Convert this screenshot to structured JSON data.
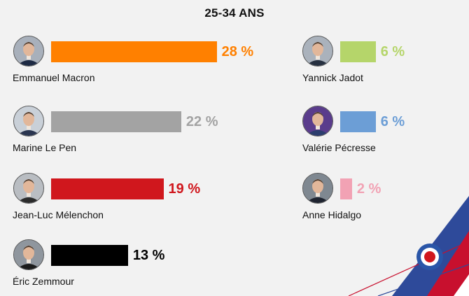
{
  "chart_data": {
    "type": "bar",
    "title": "25-34 ANS",
    "unit": "%",
    "series": [
      {
        "name": "Emmanuel Macron",
        "value": 28,
        "label": "28 %",
        "color": "#ff8000",
        "avatar_bg": "#a8b0bb",
        "suit": "#1d2a44"
      },
      {
        "name": "Marine Le Pen",
        "value": 22,
        "label": "22 %",
        "color": "#a3a3a3",
        "avatar_bg": "#c9d0d8",
        "suit": "#2a3550"
      },
      {
        "name": "Jean-Luc Mélenchon",
        "value": 19,
        "label": "19 %",
        "color": "#d0171d",
        "avatar_bg": "#b9bdc2",
        "suit": "#2b2b2b"
      },
      {
        "name": "Éric Zemmour",
        "value": 13,
        "label": "13 %",
        "color": "#000000",
        "avatar_bg": "#8f969e",
        "suit": "#1b1b1b"
      },
      {
        "name": "Yannick Jadot",
        "value": 6,
        "label": "6 %",
        "color": "#b5d56a",
        "avatar_bg": "#aab2bc",
        "suit": "#263040"
      },
      {
        "name": "Valérie Pécresse",
        "value": 6,
        "label": "6 %",
        "color": "#6c9ed6",
        "avatar_bg": "#5a3c8c",
        "suit": "#2c3e6e"
      },
      {
        "name": "Anne Hidalgo",
        "value": 2,
        "label": "2 %",
        "color": "#f2a2b4",
        "avatar_bg": "#7f8891",
        "suit": "#1f2430"
      }
    ]
  }
}
